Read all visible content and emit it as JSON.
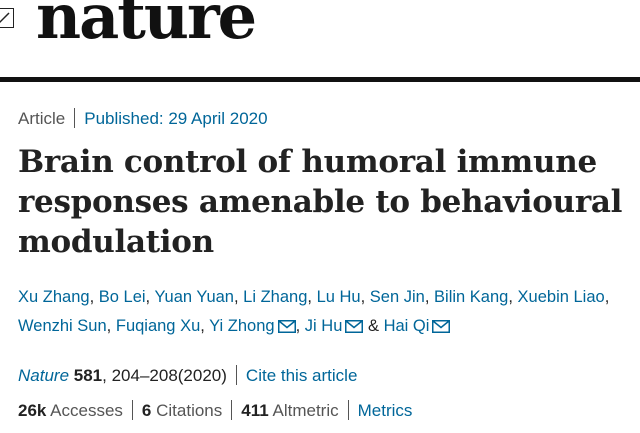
{
  "header": {
    "logo_text": "nature"
  },
  "article_meta": {
    "type": "Article",
    "published": "Published: 29 April 2020"
  },
  "title": "Brain control of humoral immune responses amenable to behavioural modulation",
  "authors": {
    "line1": [
      "Xu Zhang",
      "Bo Lei",
      "Yuan Yuan",
      "Li Zhang",
      "Lu Hu",
      "Sen Jin",
      "Bilin Kang",
      "Xuebin Liao"
    ],
    "line2": [
      "Wenzhi Sun",
      "Fuqiang Xu",
      "Yi Zhong",
      "Ji Hu",
      "Hai Qi"
    ],
    "separator": ",",
    "ampersand": "&"
  },
  "citation": {
    "journal": "Nature",
    "volume": "581",
    "pages": ", 204–208(2020)",
    "cite_link": "Cite this article"
  },
  "metrics": {
    "accesses_count": "26k",
    "accesses_label": "Accesses",
    "citations_count": "6",
    "citations_label": "Citations",
    "altmetric_count": "411",
    "altmetric_label": "Altmetric",
    "metrics_link": "Metrics"
  },
  "colors": {
    "link": "#006699",
    "text": "#222222",
    "muted": "#555555"
  },
  "icons": {
    "email": "envelope-icon",
    "back": "back-box-icon"
  }
}
